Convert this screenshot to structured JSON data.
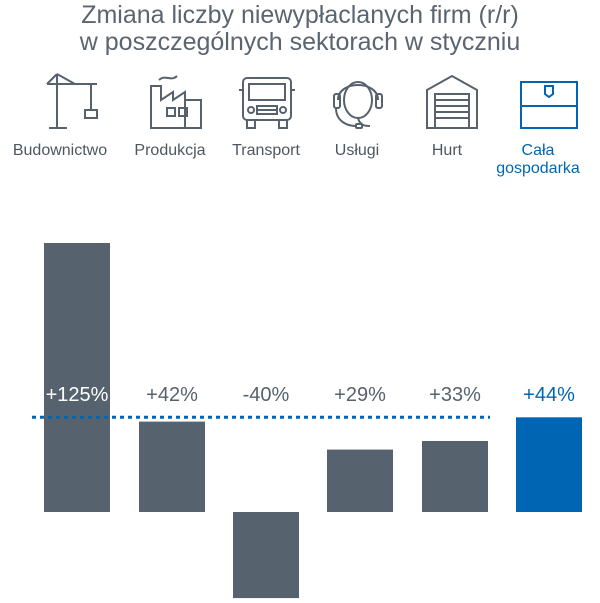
{
  "title_line1": "Zmiana liczby niewypłaclanych firm (r/r)",
  "title_line2": "w poszczególnych sektorach w styczniu",
  "categories": [
    "Budownictwo",
    "Produkcja",
    "Transport",
    "Usługi",
    "Hurt",
    "Cała gospodarka"
  ],
  "icons": [
    "crane-icon",
    "factory-icon",
    "truck-icon",
    "headset-icon",
    "warehouse-icon",
    "flag-icon"
  ],
  "colors": {
    "bar": "#56626e",
    "highlight": "#0066b3",
    "label": "#56626e"
  },
  "chart_data": {
    "type": "bar",
    "title": "Zmiana liczby niewypłaclanych firm (r/r) w poszczególnych sektorach w styczniu",
    "categories": [
      "Budownictwo",
      "Produkcja",
      "Transport",
      "Usługi",
      "Hurt",
      "Cała gospodarka"
    ],
    "values": [
      125,
      42,
      -40,
      29,
      33,
      44
    ],
    "value_labels": [
      "+125%",
      "+42%",
      "-40%",
      "+29%",
      "+33%",
      "+44%"
    ],
    "unit": "%",
    "reference_line": {
      "value": 44,
      "style": "dotted",
      "color": "#0066b3"
    },
    "highlight_index": 5,
    "grid": false,
    "legend": "none"
  }
}
